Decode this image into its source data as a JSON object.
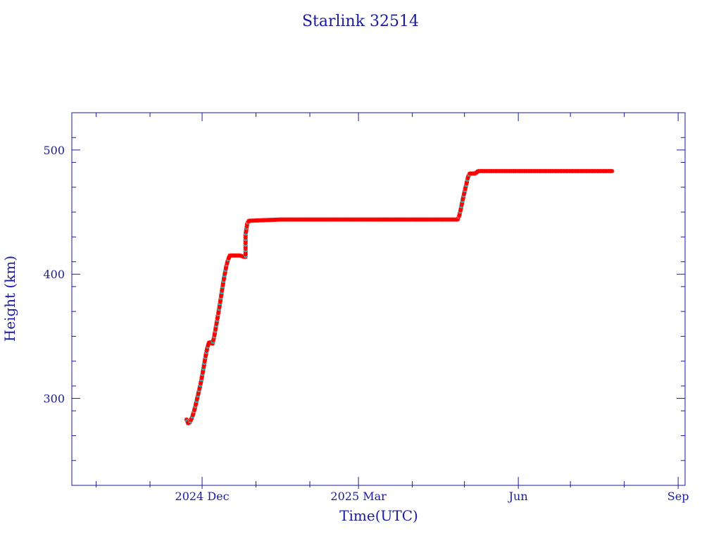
{
  "chart_data": {
    "type": "line",
    "title": "Starlink 32514",
    "xlabel": "Time(UTC)",
    "ylabel": "Height (km)",
    "xlim": [
      "2024-09-17",
      "2025-09-05"
    ],
    "ylim": [
      230,
      530
    ],
    "x_ticks": [
      {
        "date": "2024-12-01",
        "label": "2024 Dec"
      },
      {
        "date": "2025-03-01",
        "label": "2025 Mar"
      },
      {
        "date": "2025-06-01",
        "label": "Jun"
      },
      {
        "date": "2025-09-01",
        "label": "Sep"
      }
    ],
    "x_minor_ticks": [
      "2024-10-01",
      "2024-11-01",
      "2025-01-01",
      "2025-02-01",
      "2025-04-01",
      "2025-05-01",
      "2025-07-01",
      "2025-08-01"
    ],
    "y_ticks": [
      300,
      400,
      500
    ],
    "y_minor_step": 20,
    "grid": false,
    "legend": "none",
    "colors": {
      "frame": "#1a1aa0",
      "line": "#0000cc",
      "marker_main": "#ff0000",
      "marker_alt": "#00e5e5"
    },
    "series": [
      {
        "points": [
          [
            "2024-11-22",
            283
          ],
          [
            "2024-11-23",
            280
          ],
          [
            "2024-11-24",
            281
          ],
          [
            "2024-11-25",
            284
          ],
          [
            "2024-11-26",
            288
          ],
          [
            "2024-11-27",
            293
          ],
          [
            "2024-11-28",
            299
          ],
          [
            "2024-11-29",
            305
          ],
          [
            "2024-11-30",
            311
          ],
          [
            "2024-12-01",
            318
          ],
          [
            "2024-12-02",
            326
          ],
          [
            "2024-12-03",
            334
          ],
          [
            "2024-12-04",
            341
          ],
          [
            "2024-12-05",
            345
          ],
          [
            "2024-12-06",
            345
          ],
          [
            "2024-12-07",
            344
          ],
          [
            "2024-12-08",
            350
          ],
          [
            "2024-12-09",
            358
          ],
          [
            "2024-12-10",
            366
          ],
          [
            "2024-12-11",
            374
          ],
          [
            "2024-12-12",
            383
          ],
          [
            "2024-12-13",
            392
          ],
          [
            "2024-12-14",
            400
          ],
          [
            "2024-12-15",
            407
          ],
          [
            "2024-12-16",
            412
          ],
          [
            "2024-12-17",
            415
          ],
          [
            "2024-12-20",
            415
          ],
          [
            "2024-12-23",
            415
          ],
          [
            "2024-12-25",
            414
          ],
          [
            "2024-12-26",
            414
          ],
          [
            "2024-12-26",
            432
          ],
          [
            "2024-12-27",
            441
          ],
          [
            "2024-12-28",
            443
          ],
          [
            "2025-01-15",
            444
          ],
          [
            "2025-02-10",
            444
          ],
          [
            "2025-03-10",
            444
          ],
          [
            "2025-04-10",
            444
          ],
          [
            "2025-04-27",
            444
          ],
          [
            "2025-04-28",
            447
          ],
          [
            "2025-04-29",
            453
          ],
          [
            "2025-04-30",
            460
          ],
          [
            "2025-05-01",
            466
          ],
          [
            "2025-05-02",
            472
          ],
          [
            "2025-05-03",
            478
          ],
          [
            "2025-05-04",
            481
          ],
          [
            "2025-05-07",
            481
          ],
          [
            "2025-05-09",
            483
          ],
          [
            "2025-06-01",
            483
          ],
          [
            "2025-07-01",
            483
          ],
          [
            "2025-07-25",
            483
          ]
        ]
      }
    ]
  }
}
